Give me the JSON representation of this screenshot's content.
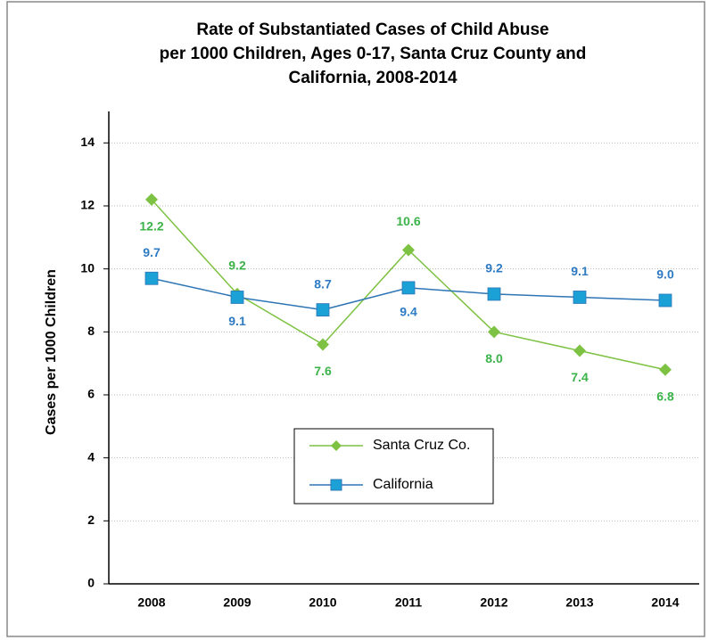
{
  "chart_data": {
    "type": "line",
    "title": [
      "Rate of Substantiated Cases of Child Abuse",
      "per 1000 Children, Ages 0-17, Santa Cruz County and",
      "California, 2008-2014"
    ],
    "y_label": "Cases per 1000 Children",
    "categories": [
      "2008",
      "2009",
      "2010",
      "2011",
      "2012",
      "2013",
      "2014"
    ],
    "series": [
      {
        "name": "Santa Cruz Co.",
        "color": "#7dc242",
        "label_color": "#3cb34a",
        "marker": "diamond",
        "values": [
          12.2,
          9.2,
          7.6,
          10.6,
          8.0,
          7.4,
          6.8
        ],
        "value_labels": [
          "12.2",
          "9.2",
          "7.6",
          "10.6",
          "8.0",
          "7.4",
          "6.8"
        ]
      },
      {
        "name": "California",
        "color": "#2e75b6",
        "label_color": "#2e7bc4",
        "marker": "square",
        "marker_color": "#1ba1d6",
        "values": [
          9.7,
          9.1,
          8.7,
          9.4,
          9.2,
          9.1,
          9.0
        ],
        "value_labels": [
          "9.7",
          "9.1",
          "8.7",
          "9.4",
          "9.2",
          "9.1",
          "9.0"
        ]
      }
    ],
    "ylim": [
      0,
      15
    ],
    "yticks": [
      0,
      2,
      4,
      6,
      8,
      10,
      12,
      14
    ],
    "grid": true,
    "legend": "center"
  }
}
